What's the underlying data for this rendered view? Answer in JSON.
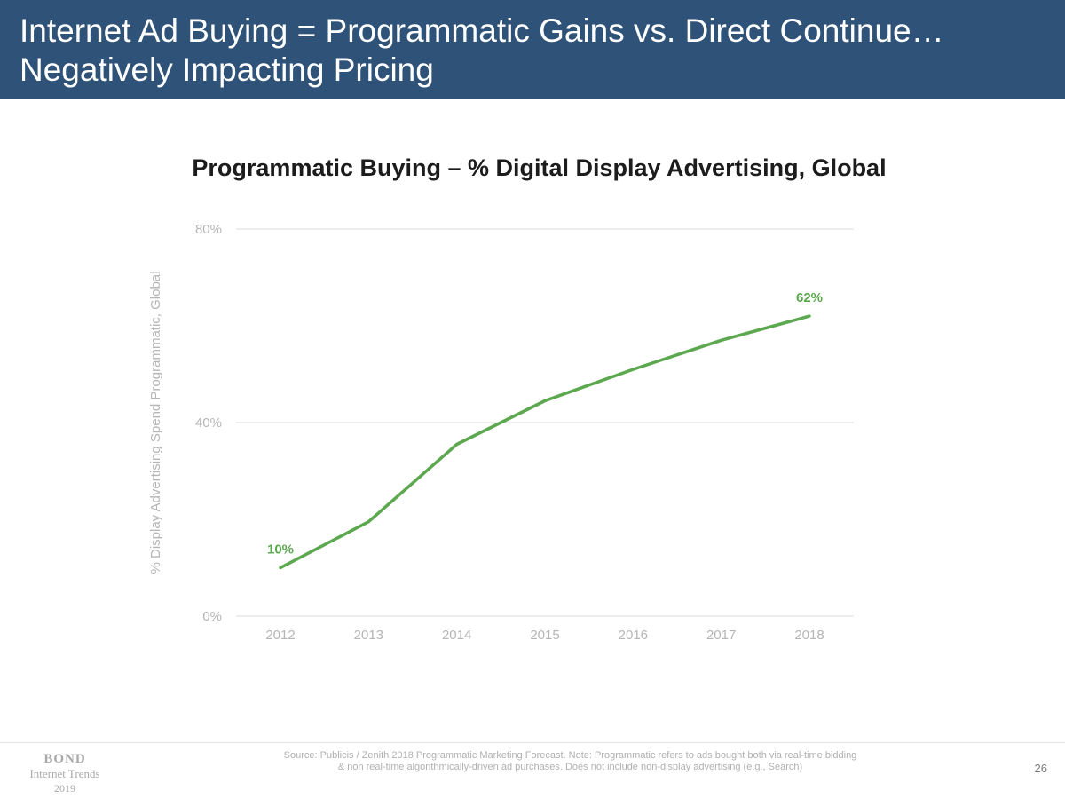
{
  "header": {
    "title": "Internet Ad Buying = Programmatic Gains vs. Direct Continue… Negatively Impacting Pricing"
  },
  "chart_data": {
    "type": "line",
    "title": "Programmatic Buying – % Digital Display Advertising, Global",
    "xlabel": "",
    "ylabel": "% Display Advertising Spend Programmatic, Global",
    "x": [
      "2012",
      "2013",
      "2014",
      "2015",
      "2016",
      "2017",
      "2018"
    ],
    "series": [
      {
        "values": [
          10,
          19.5,
          35.5,
          44.5,
          51,
          57,
          62
        ]
      }
    ],
    "ylim": [
      0,
      80
    ],
    "yticks": [
      0,
      40,
      80
    ],
    "ytick_labels": [
      "0%",
      "40%",
      "80%"
    ],
    "data_labels": [
      {
        "index": 0,
        "text": "10%"
      },
      {
        "index": 6,
        "text": "62%"
      }
    ],
    "grid": true,
    "legend": "none",
    "colors": {
      "line": "#5ca84f",
      "grid": "#dcdcdc",
      "axis_text": "#b5b5b5"
    }
  },
  "footer": {
    "logo": {
      "name": "BOND",
      "subtitle": "Internet Trends",
      "year": "2019"
    },
    "source_line1": "Source: Publicis / Zenith 2018 Programmatic Marketing Forecast.  Note: Programmatic refers to ads bought both via real-time bidding",
    "source_line2": "& non real-time algorithmically-driven ad purchases.  Does not include non-display advertising (e.g., Search)",
    "page_number": "26"
  }
}
